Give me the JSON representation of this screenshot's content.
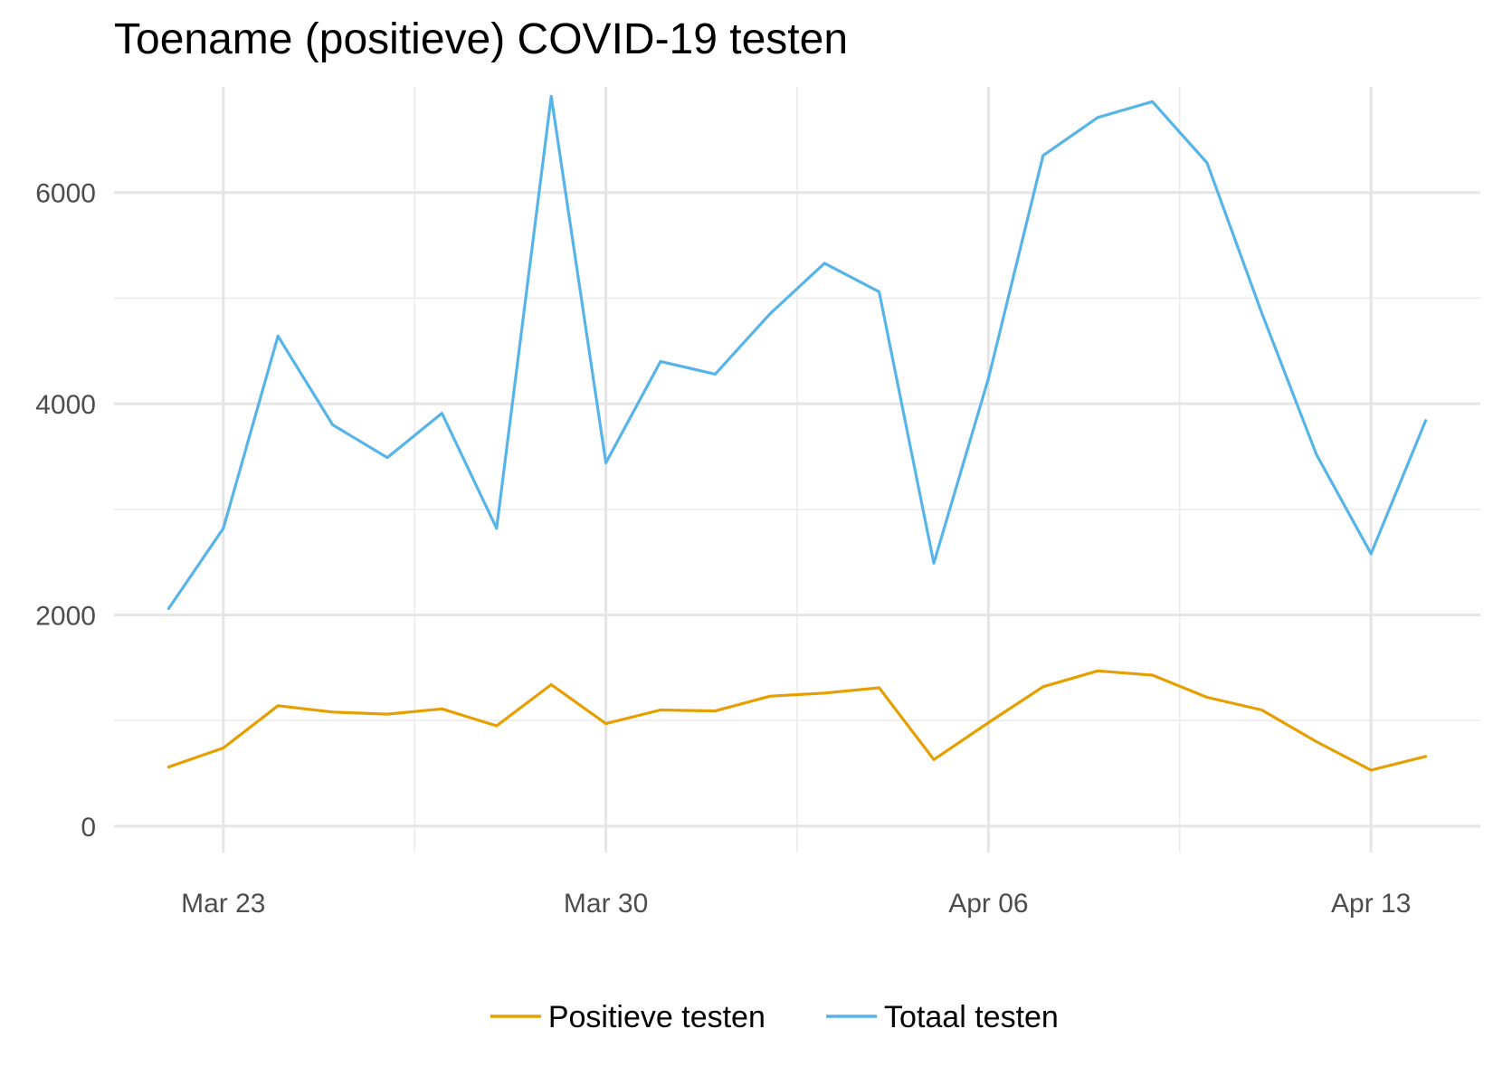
{
  "chart_data": {
    "type": "line",
    "title": "Toename (positieve) COVID-19 testen",
    "xlabel": "",
    "ylabel": "",
    "x": [
      "2020-03-22",
      "2020-03-23",
      "2020-03-24",
      "2020-03-25",
      "2020-03-26",
      "2020-03-27",
      "2020-03-28",
      "2020-03-29",
      "2020-03-30",
      "2020-03-31",
      "2020-04-01",
      "2020-04-02",
      "2020-04-03",
      "2020-04-04",
      "2020-04-05",
      "2020-04-06",
      "2020-04-07",
      "2020-04-08",
      "2020-04-09",
      "2020-04-10",
      "2020-04-11",
      "2020-04-12",
      "2020-04-13",
      "2020-04-14"
    ],
    "xlim": [
      "2020-03-21",
      "2020-04-15"
    ],
    "x_ticks": [
      {
        "date": "2020-03-23",
        "label": "Mar 23"
      },
      {
        "date": "2020-03-30",
        "label": "Mar 30"
      },
      {
        "date": "2020-04-06",
        "label": "Apr 06"
      },
      {
        "date": "2020-04-13",
        "label": "Apr 13"
      }
    ],
    "ylim": [
      -250,
      7000
    ],
    "y_ticks": [
      0,
      2000,
      4000,
      6000
    ],
    "y_ticks_labels": [
      "0",
      "2000",
      "4000",
      "6000"
    ],
    "grid": true,
    "legend_position": "bottom",
    "series": [
      {
        "name": "Positieve testen",
        "color": "#E69F00",
        "values": [
          560,
          740,
          1140,
          1080,
          1060,
          1110,
          950,
          1340,
          970,
          1100,
          1090,
          1230,
          1260,
          1310,
          630,
          980,
          1320,
          1470,
          1430,
          1220,
          1100,
          800,
          530,
          660
        ]
      },
      {
        "name": "Totaal testen",
        "color": "#56B4E9",
        "values": [
          2060,
          2820,
          4640,
          3800,
          3490,
          3910,
          2820,
          6910,
          3440,
          4400,
          4280,
          4850,
          5330,
          5060,
          2490,
          4240,
          6350,
          6710,
          6860,
          6280,
          4860,
          3520,
          2580,
          3840
        ]
      }
    ]
  }
}
